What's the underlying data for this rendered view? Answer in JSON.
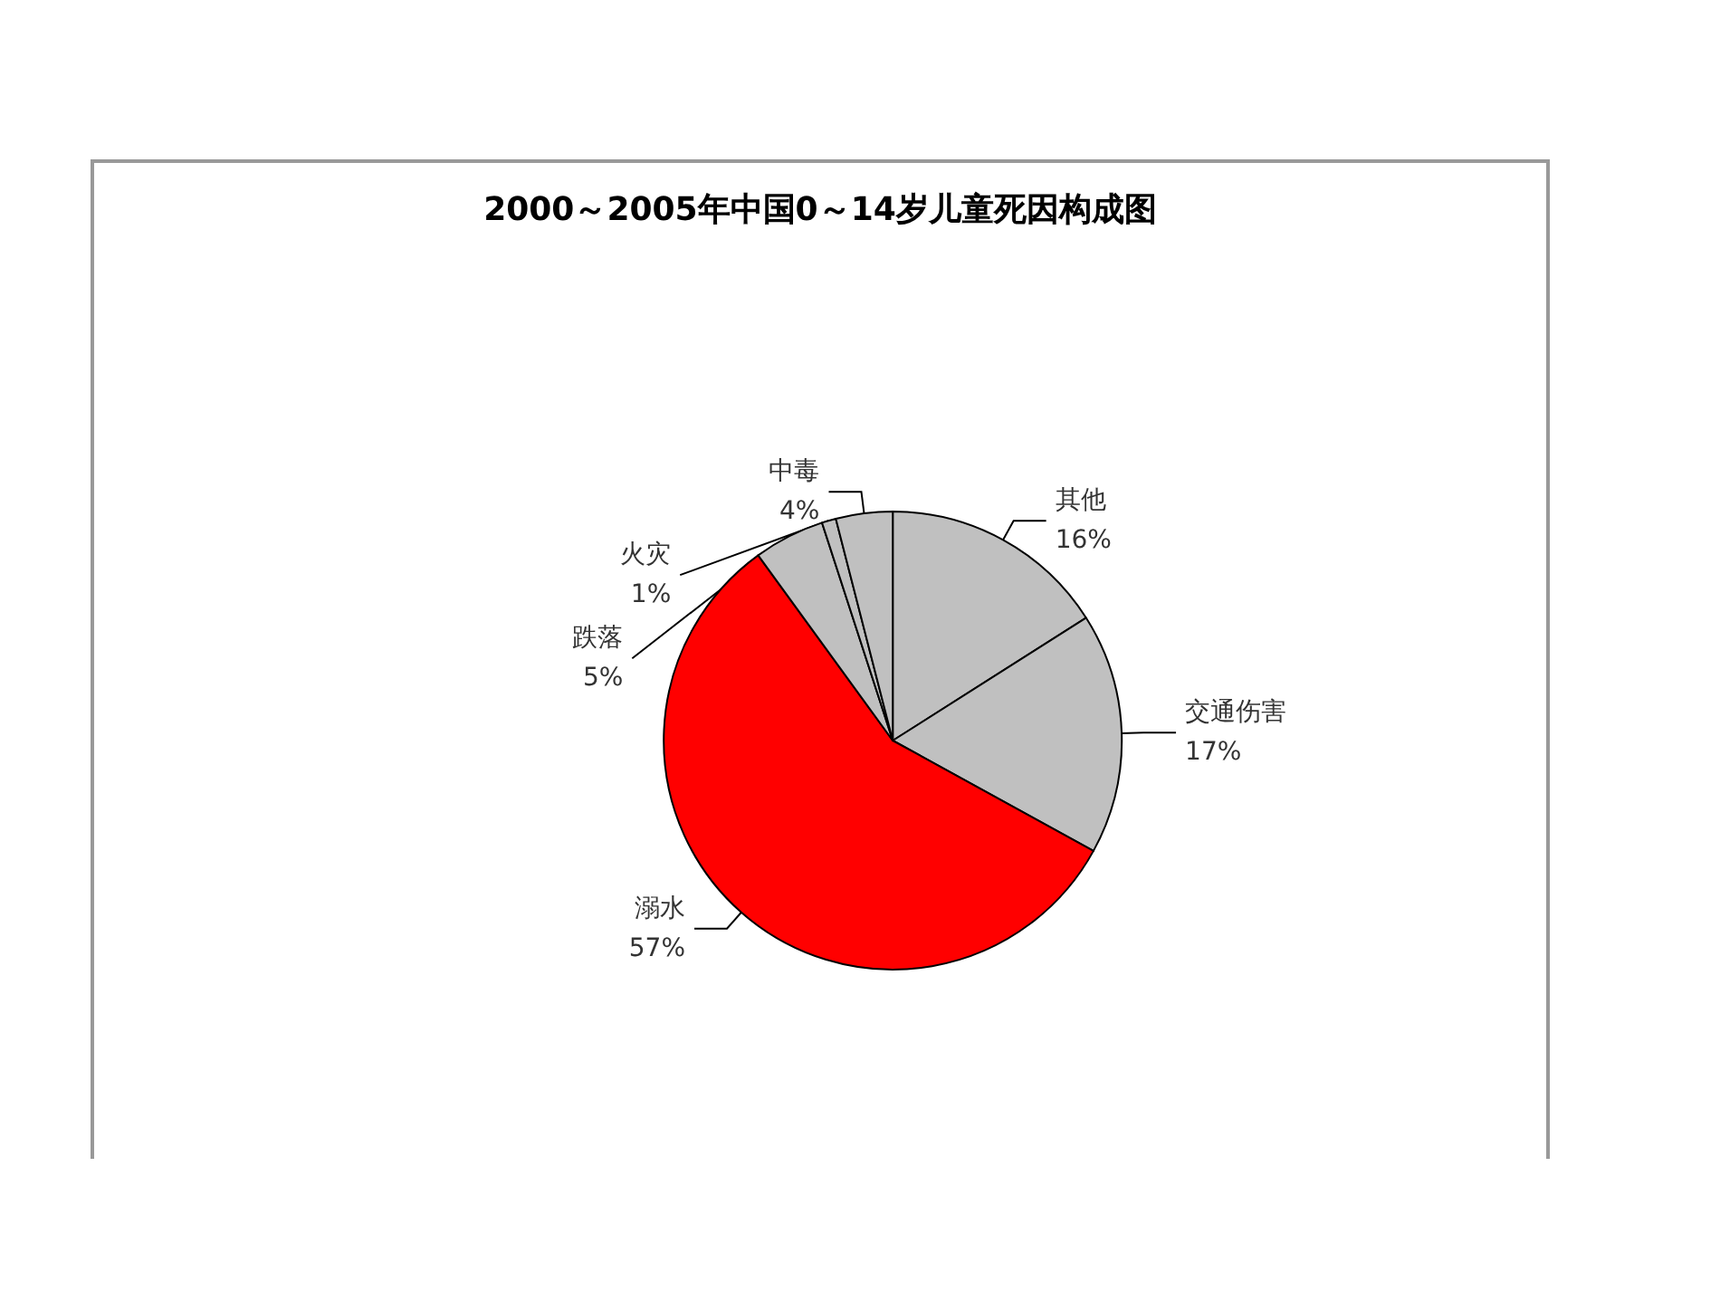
{
  "chart_data": {
    "type": "pie",
    "title": "2000～2005年中国0～14岁儿童死因构成图",
    "categories": [
      "其他",
      "交通伤害",
      "溺水",
      "跌落",
      "火灾",
      "中毒"
    ],
    "values": [
      16,
      17,
      57,
      5,
      1,
      4
    ],
    "value_labels": [
      "16%",
      "17%",
      "57%",
      "5%",
      "1%",
      "4%"
    ],
    "colors": [
      "#c0c0c0",
      "#c0c0c0",
      "#ff0000",
      "#c0c0c0",
      "#c0c0c0",
      "#c0c0c0"
    ],
    "legend": false
  }
}
